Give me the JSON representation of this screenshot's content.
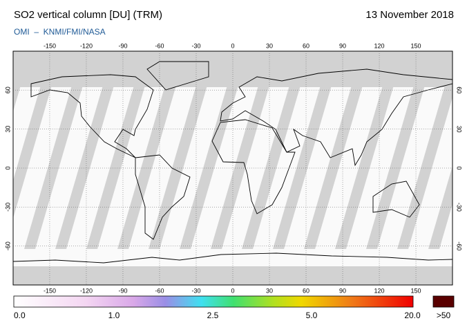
{
  "header": {
    "title": "SO2 vertical column [DU] (TRM)",
    "date": "13 November 2018",
    "subtitle": "OMI  –  KNMI/FMI/NASA"
  },
  "map": {
    "lon_ticks": [
      -150,
      -120,
      -90,
      -60,
      -30,
      0,
      30,
      60,
      90,
      120,
      150
    ],
    "lat_ticks": [
      60,
      30,
      0,
      -30,
      -60
    ]
  },
  "colorbar": {
    "labels": [
      "0.0",
      "1.0",
      "2.5",
      "5.0",
      "20.0"
    ],
    "overflow_label": ">50"
  }
}
